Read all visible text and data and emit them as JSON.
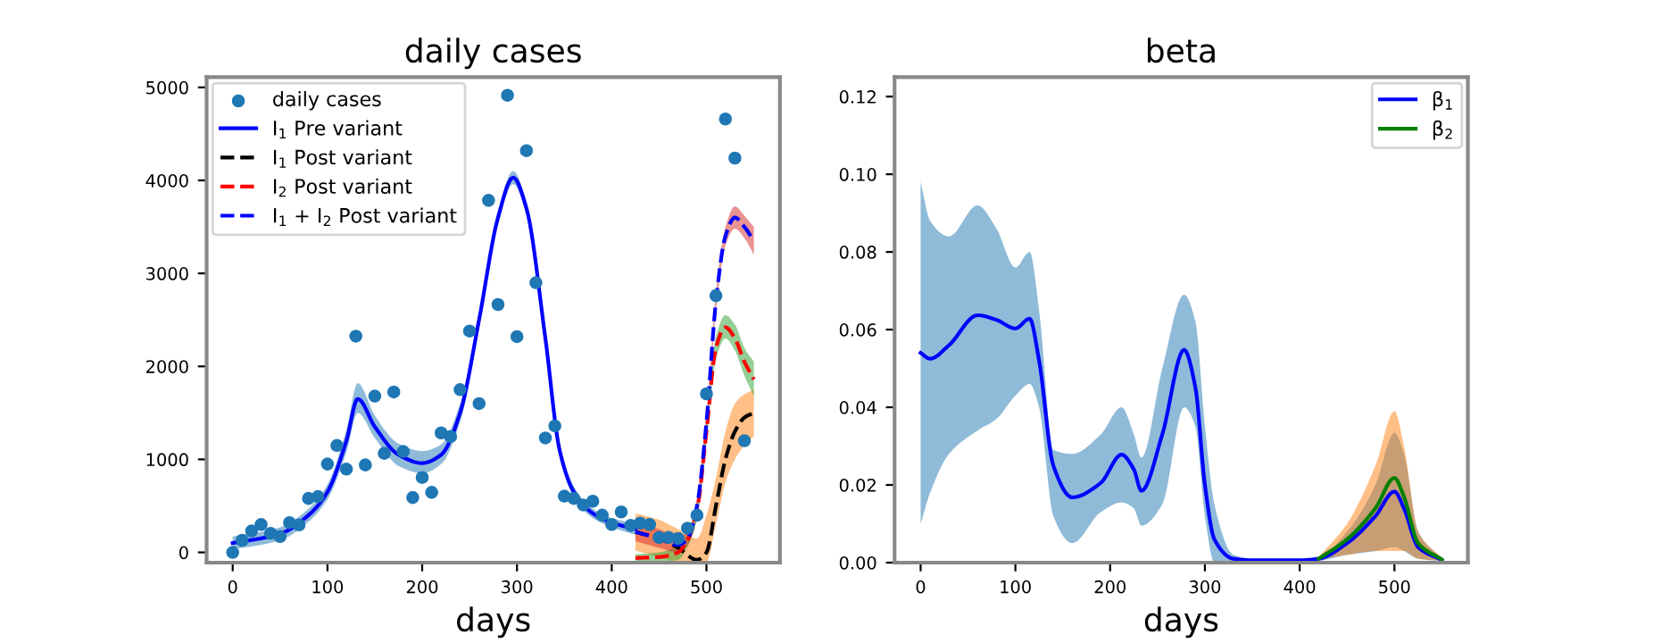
{
  "chart_data": [
    {
      "type": "line",
      "title": "daily cases",
      "xlabel": "days",
      "xlim": [
        -27.5,
        577.5
      ],
      "ylim": [
        -110,
        5110
      ],
      "xticks": [
        0,
        100,
        200,
        300,
        400,
        500
      ],
      "yticks": [
        0,
        1000,
        2000,
        3000,
        4000,
        5000
      ],
      "legend": "top left",
      "grid": false,
      "series": [
        {
          "name": "daily cases",
          "type": "scatter",
          "marker": "circle",
          "color": "#1f77b4",
          "x": [
            0,
            10,
            20,
            30,
            40,
            50,
            60,
            70,
            80,
            90,
            100,
            110,
            120,
            130,
            140,
            150,
            160,
            170,
            180,
            190,
            200,
            210,
            220,
            230,
            240,
            250,
            260,
            270,
            280,
            290,
            300,
            310,
            320,
            330,
            340,
            350,
            360,
            370,
            380,
            390,
            400,
            410,
            420,
            430,
            440,
            450,
            460,
            470,
            480,
            490,
            500,
            510,
            520,
            530,
            540
          ],
          "values": [
            0,
            130,
            230,
            300,
            205,
            170,
            320,
            295,
            580,
            600,
            950,
            1150,
            895,
            2325,
            940,
            1680,
            1065,
            1725,
            1085,
            590,
            805,
            645,
            1285,
            1245,
            1750,
            2380,
            1600,
            3785,
            2665,
            4915,
            2320,
            4320,
            2900,
            1230,
            1360,
            605,
            580,
            510,
            550,
            400,
            300,
            435,
            290,
            315,
            300,
            160,
            160,
            150,
            260,
            400,
            1705,
            2760,
            4660,
            4240,
            1200
          ]
        },
        {
          "name": "I$_{1}$ Pre variant",
          "line_style": "solid",
          "color": "#0000ff",
          "x": [
            0,
            50,
            80,
            100,
            120,
            132,
            150,
            175,
            200,
            220,
            240,
            260,
            280,
            296,
            310,
            330,
            345,
            360,
            380,
            400,
            425
          ],
          "values": [
            100,
            200,
            400,
            650,
            1200,
            1650,
            1350,
            1050,
            960,
            1050,
            1500,
            2500,
            3600,
            4030,
            3700,
            2300,
            1100,
            650,
            420,
            320,
            250
          ],
          "lower": [
            30,
            130,
            330,
            570,
            1080,
            1500,
            1230,
            930,
            850,
            950,
            1400,
            2420,
            3530,
            3960,
            3630,
            2230,
            1040,
            590,
            370,
            270,
            190
          ],
          "upper": [
            170,
            270,
            470,
            730,
            1320,
            1820,
            1470,
            1170,
            1090,
            1160,
            1600,
            2580,
            3670,
            4100,
            3770,
            2370,
            1160,
            710,
            470,
            370,
            310
          ]
        },
        {
          "name": "I$_{1}$ Post variant",
          "line_style": "dashed",
          "color": "#000000",
          "x": [
            425,
            450,
            470,
            490,
            500,
            510,
            520,
            530,
            540,
            550
          ],
          "values": [
            220,
            150,
            50,
            -80,
            0,
            500,
            1000,
            1300,
            1450,
            1500
          ],
          "lower": [
            20,
            -50,
            -100,
            -100,
            -100,
            300,
            750,
            1000,
            1150,
            1250
          ],
          "upper": [
            420,
            350,
            250,
            150,
            400,
            800,
            1300,
            1600,
            1700,
            1750
          ]
        },
        {
          "name": "I$_{2}$ Post variant",
          "line_style": "dashed",
          "color": "#ff0000",
          "x": [
            425,
            450,
            470,
            480,
            490,
            500,
            510,
            520,
            530,
            540,
            550
          ],
          "values": [
            -60,
            -50,
            0,
            130,
            450,
            1300,
            2200,
            2420,
            2300,
            2050,
            1860
          ],
          "lower": [
            -100,
            -100,
            -80,
            60,
            350,
            1180,
            2080,
            2300,
            2170,
            1900,
            1680
          ],
          "upper": [
            -20,
            0,
            80,
            200,
            550,
            1420,
            2320,
            2550,
            2450,
            2200,
            2050
          ]
        },
        {
          "name": "I$_{1}$ + I$_{2}$ Post variant",
          "line_style": "dashed",
          "color": "#0000ff",
          "x": [
            425,
            450,
            470,
            480,
            490,
            500,
            510,
            520,
            530,
            540,
            550
          ],
          "values": [
            220,
            150,
            80,
            150,
            500,
            1400,
            2700,
            3400,
            3600,
            3500,
            3350
          ],
          "lower": [
            120,
            50,
            0,
            80,
            420,
            1320,
            2600,
            3300,
            3480,
            3380,
            3200
          ],
          "upper": [
            320,
            250,
            160,
            230,
            580,
            1480,
            2800,
            3500,
            3720,
            3620,
            3500
          ]
        }
      ]
    },
    {
      "type": "line",
      "title": "beta",
      "xlabel": "days",
      "xlim": [
        -27.5,
        577.5
      ],
      "ylim": [
        0,
        0.125
      ],
      "xticks": [
        0,
        100,
        200,
        300,
        400,
        500
      ],
      "yticks": [
        {
          "value": 0,
          "label": "0.00"
        },
        {
          "value": 0.02,
          "label": "0.02"
        },
        {
          "value": 0.04,
          "label": "0.04"
        },
        {
          "value": 0.06,
          "label": "0.06"
        },
        {
          "value": 0.08,
          "label": "0.08"
        },
        {
          "value": 0.1,
          "label": "0.10"
        },
        {
          "value": 0.12,
          "label": "0.12"
        }
      ],
      "legend": "top right",
      "grid": false,
      "series": [
        {
          "name": "β$_{1}$",
          "line_style": "solid",
          "color": "#0000ff",
          "x": [
            0,
            10,
            30,
            60,
            80,
            100,
            115,
            125,
            140,
            160,
            190,
            212,
            225,
            233,
            255,
            278,
            290,
            300,
            310,
            330,
            350,
            400,
            420,
            450,
            480,
            500,
            510,
            525,
            550
          ],
          "values": [
            0.054,
            0.0525,
            0.056,
            0.0637,
            0.0625,
            0.0603,
            0.0628,
            0.052,
            0.025,
            0.0168,
            0.0205,
            0.0278,
            0.024,
            0.0185,
            0.033,
            0.0548,
            0.045,
            0.02,
            0.006,
            0.001,
            0.0006,
            0.0006,
            0.001,
            0.005,
            0.012,
            0.0183,
            0.014,
            0.004,
            0.0007
          ],
          "lower": [
            0.01,
            0.018,
            0.028,
            0.034,
            0.037,
            0.043,
            0.046,
            0.04,
            0.012,
            0.005,
            0.013,
            0.0155,
            0.014,
            0.0095,
            0.015,
            0.04,
            0.035,
            0.012,
            0,
            0,
            0.0003,
            0.0003,
            0.0005,
            0.002,
            0.003,
            0.004,
            0.003,
            0.001,
            0.0004
          ],
          "upper": [
            0.098,
            0.088,
            0.084,
            0.092,
            0.086,
            0.076,
            0.08,
            0.065,
            0.029,
            0.028,
            0.033,
            0.04,
            0.033,
            0.027,
            0.05,
            0.069,
            0.062,
            0.035,
            0.015,
            0.002,
            0.001,
            0.001,
            0.0015,
            0.008,
            0.02,
            0.0335,
            0.028,
            0.008,
            0.001
          ]
        },
        {
          "name": "β$_{2}$",
          "line_style": "solid",
          "color": "#008000",
          "x": [
            420,
            450,
            480,
            500,
            510,
            525,
            550
          ],
          "values": [
            0.001,
            0.006,
            0.014,
            0.0218,
            0.017,
            0.005,
            0.0008
          ],
          "lower": [
            0.0008,
            0.002,
            0.003,
            0.003,
            0.003,
            0.001,
            0.0005
          ],
          "upper": [
            0.0015,
            0.01,
            0.025,
            0.039,
            0.03,
            0.008,
            0.0012
          ]
        }
      ]
    }
  ]
}
